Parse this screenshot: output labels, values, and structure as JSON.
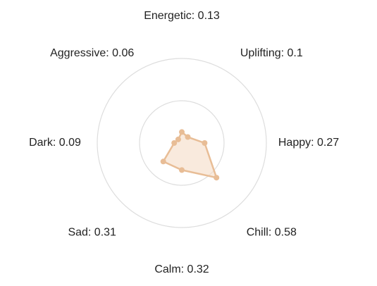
{
  "chart_data": {
    "type": "radar",
    "axes": [
      "Energetic",
      "Uplifting",
      "Happy",
      "Chill",
      "Calm",
      "Sad",
      "Dark",
      "Aggressive"
    ],
    "values": [
      0.13,
      0.1,
      0.27,
      0.58,
      0.32,
      0.31,
      0.09,
      0.06
    ],
    "labels": [
      "Energetic: 0.13",
      "Uplifting: 0.1",
      "Happy: 0.27",
      "Chill: 0.58",
      "Calm: 0.32",
      "Sad: 0.31",
      "Dark: 0.09",
      "Aggressive: 0.06"
    ],
    "rlim": [
      0,
      1
    ],
    "rings": [
      0.5,
      1.0
    ],
    "grid": true,
    "legend": "none"
  },
  "colors": {
    "series_stroke": "#e8bd96",
    "series_fill": "#f5dcc6",
    "series_point": "#e8bd96",
    "ring": "#dddddd",
    "label_text": "#222222",
    "background": "#ffffff"
  }
}
